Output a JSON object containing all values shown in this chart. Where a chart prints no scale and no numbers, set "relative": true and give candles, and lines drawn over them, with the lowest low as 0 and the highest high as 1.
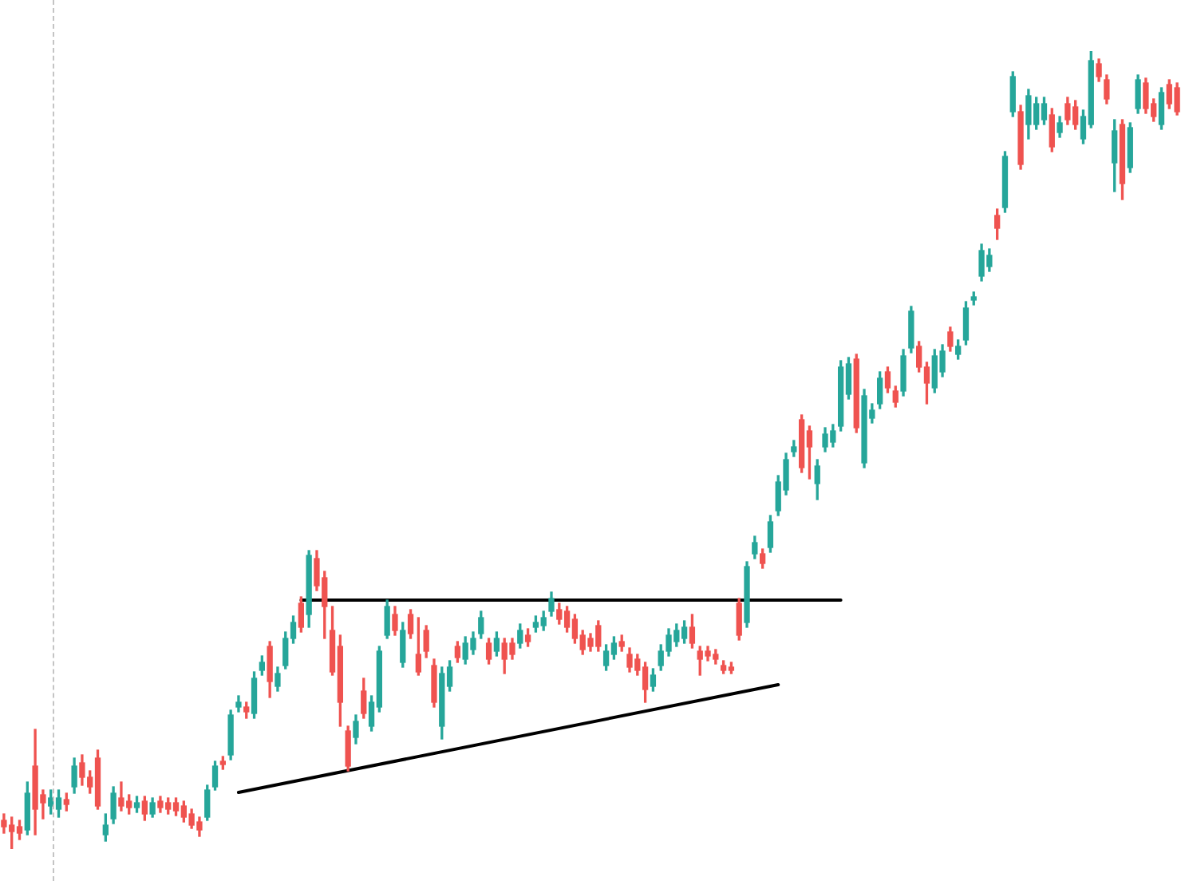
{
  "chart_data": {
    "type": "candlestick",
    "relative": true,
    "categories": [
      null,
      null,
      null,
      null,
      null,
      null,
      null,
      null,
      null,
      null,
      null,
      null,
      null,
      null,
      null,
      null,
      null,
      null,
      null,
      null,
      null,
      null,
      null,
      null,
      null,
      null,
      null,
      null,
      null,
      null,
      null,
      null,
      null,
      null,
      null,
      null,
      null,
      null,
      null,
      null,
      null,
      null,
      null,
      null,
      null,
      null,
      null,
      null,
      null,
      null,
      null,
      null,
      null,
      null,
      null,
      null,
      null,
      null,
      null,
      null,
      null,
      null,
      null,
      null,
      null,
      null,
      null,
      null,
      null,
      null,
      null,
      null,
      null,
      null,
      null,
      null,
      null,
      null,
      null,
      null,
      null,
      null,
      null,
      null,
      null,
      null,
      null,
      null,
      null,
      null,
      null,
      null,
      null,
      null,
      null,
      null,
      null,
      null,
      null,
      null,
      null,
      null,
      null,
      null,
      null,
      null,
      null,
      null,
      null,
      null,
      null,
      null,
      null,
      null,
      null,
      null,
      null,
      null,
      null,
      null,
      null,
      null,
      null,
      null,
      null,
      null,
      null,
      null,
      null,
      null,
      null,
      null,
      null,
      null,
      null,
      null,
      null,
      null,
      null,
      null,
      null,
      null,
      null,
      null,
      null,
      null,
      null,
      null,
      null,
      null,
      null
    ],
    "ohlc": [
      [
        0.036,
        0.044,
        0.02,
        0.028
      ],
      [
        0.03,
        0.04,
        0.0,
        0.022
      ],
      [
        0.028,
        0.036,
        0.012,
        0.02
      ],
      [
        0.024,
        0.084,
        0.018,
        0.07
      ],
      [
        0.104,
        0.15,
        0.018,
        0.05
      ],
      [
        0.068,
        0.074,
        0.038,
        0.058
      ],
      [
        0.054,
        0.074,
        0.044,
        0.064
      ],
      [
        0.05,
        0.074,
        0.04,
        0.064
      ],
      [
        0.062,
        0.07,
        0.048,
        0.056
      ],
      [
        0.078,
        0.114,
        0.07,
        0.104
      ],
      [
        0.108,
        0.118,
        0.08,
        0.09
      ],
      [
        0.09,
        0.098,
        0.07,
        0.078
      ],
      [
        0.114,
        0.124,
        0.05,
        0.054
      ],
      [
        0.018,
        0.044,
        0.01,
        0.03
      ],
      [
        0.038,
        0.078,
        0.032,
        0.07
      ],
      [
        0.064,
        0.084,
        0.048,
        0.054
      ],
      [
        0.06,
        0.068,
        0.044,
        0.052
      ],
      [
        0.052,
        0.066,
        0.046,
        0.058
      ],
      [
        0.06,
        0.066,
        0.036,
        0.044
      ],
      [
        0.044,
        0.064,
        0.04,
        0.058
      ],
      [
        0.06,
        0.066,
        0.046,
        0.052
      ],
      [
        0.058,
        0.064,
        0.044,
        0.05
      ],
      [
        0.058,
        0.064,
        0.042,
        0.048
      ],
      [
        0.054,
        0.06,
        0.034,
        0.04
      ],
      [
        0.044,
        0.05,
        0.026,
        0.03
      ],
      [
        0.034,
        0.04,
        0.016,
        0.024
      ],
      [
        0.04,
        0.08,
        0.036,
        0.074
      ],
      [
        0.078,
        0.11,
        0.074,
        0.104
      ],
      [
        0.11,
        0.116,
        0.1,
        0.106
      ],
      [
        0.118,
        0.174,
        0.112,
        0.168
      ],
      [
        0.178,
        0.192,
        0.172,
        0.184
      ],
      [
        0.178,
        0.184,
        0.164,
        0.172
      ],
      [
        0.17,
        0.222,
        0.164,
        0.214
      ],
      [
        0.224,
        0.242,
        0.218,
        0.234
      ],
      [
        0.254,
        0.26,
        0.19,
        0.21
      ],
      [
        0.204,
        0.228,
        0.198,
        0.22
      ],
      [
        0.23,
        0.272,
        0.226,
        0.264
      ],
      [
        0.264,
        0.292,
        0.258,
        0.284
      ],
      [
        0.308,
        0.316,
        0.272,
        0.278
      ],
      [
        0.294,
        0.374,
        0.278,
        0.368
      ],
      [
        0.364,
        0.374,
        0.324,
        0.33
      ],
      [
        0.34,
        0.348,
        0.264,
        0.304
      ],
      [
        0.274,
        0.304,
        0.218,
        0.222
      ],
      [
        0.254,
        0.268,
        0.154,
        0.184
      ],
      [
        0.148,
        0.154,
        0.098,
        0.104
      ],
      [
        0.14,
        0.168,
        0.132,
        0.16
      ],
      [
        0.198,
        0.214,
        0.164,
        0.17
      ],
      [
        0.154,
        0.192,
        0.148,
        0.184
      ],
      [
        0.178,
        0.254,
        0.172,
        0.248
      ],
      [
        0.268,
        0.312,
        0.264,
        0.304
      ],
      [
        0.294,
        0.304,
        0.268,
        0.274
      ],
      [
        0.234,
        0.284,
        0.228,
        0.274
      ],
      [
        0.294,
        0.3,
        0.264,
        0.27
      ],
      [
        0.244,
        0.29,
        0.218,
        0.222
      ],
      [
        0.274,
        0.28,
        0.24,
        0.248
      ],
      [
        0.23,
        0.238,
        0.178,
        0.184
      ],
      [
        0.154,
        0.228,
        0.138,
        0.22
      ],
      [
        0.204,
        0.236,
        0.198,
        0.228
      ],
      [
        0.254,
        0.26,
        0.234,
        0.24
      ],
      [
        0.238,
        0.266,
        0.232,
        0.258
      ],
      [
        0.25,
        0.272,
        0.244,
        0.264
      ],
      [
        0.27,
        0.298,
        0.264,
        0.29
      ],
      [
        0.258,
        0.264,
        0.232,
        0.238
      ],
      [
        0.248,
        0.272,
        0.242,
        0.264
      ],
      [
        0.258,
        0.264,
        0.22,
        0.238
      ],
      [
        0.258,
        0.264,
        0.238,
        0.244
      ],
      [
        0.258,
        0.282,
        0.252,
        0.274
      ],
      [
        0.268,
        0.276,
        0.254,
        0.26
      ],
      [
        0.278,
        0.292,
        0.272,
        0.284
      ],
      [
        0.28,
        0.298,
        0.274,
        0.29
      ],
      [
        0.298,
        0.322,
        0.292,
        0.314
      ],
      [
        0.3,
        0.308,
        0.282,
        0.288
      ],
      [
        0.298,
        0.304,
        0.272,
        0.278
      ],
      [
        0.288,
        0.294,
        0.258,
        0.264
      ],
      [
        0.268,
        0.274,
        0.244,
        0.25
      ],
      [
        0.264,
        0.27,
        0.248,
        0.254
      ],
      [
        0.28,
        0.286,
        0.248,
        0.254
      ],
      [
        0.23,
        0.256,
        0.224,
        0.248
      ],
      [
        0.244,
        0.266,
        0.238,
        0.258
      ],
      [
        0.26,
        0.268,
        0.248,
        0.254
      ],
      [
        0.244,
        0.252,
        0.222,
        0.228
      ],
      [
        0.238,
        0.244,
        0.218,
        0.224
      ],
      [
        0.228,
        0.234,
        0.184,
        0.2
      ],
      [
        0.204,
        0.226,
        0.198,
        0.218
      ],
      [
        0.23,
        0.256,
        0.224,
        0.248
      ],
      [
        0.248,
        0.276,
        0.242,
        0.268
      ],
      [
        0.26,
        0.282,
        0.254,
        0.274
      ],
      [
        0.264,
        0.286,
        0.258,
        0.278
      ],
      [
        0.278,
        0.294,
        0.252,
        0.258
      ],
      [
        0.248,
        0.254,
        0.218,
        0.238
      ],
      [
        0.248,
        0.254,
        0.236,
        0.242
      ],
      [
        0.244,
        0.25,
        0.232,
        0.238
      ],
      [
        0.23,
        0.236,
        0.22,
        0.224
      ],
      [
        0.228,
        0.234,
        0.22,
        0.224
      ],
      [
        0.308,
        0.314,
        0.262,
        0.268
      ],
      [
        0.284,
        0.36,
        0.278,
        0.354
      ],
      [
        0.37,
        0.392,
        0.364,
        0.384
      ],
      [
        0.37,
        0.376,
        0.352,
        0.358
      ],
      [
        0.378,
        0.418,
        0.372,
        0.41
      ],
      [
        0.424,
        0.468,
        0.418,
        0.46
      ],
      [
        0.45,
        0.496,
        0.444,
        0.488
      ],
      [
        0.498,
        0.512,
        0.492,
        0.504
      ],
      [
        0.538,
        0.544,
        0.472,
        0.478
      ],
      [
        0.524,
        0.53,
        0.464,
        0.504
      ],
      [
        0.458,
        0.488,
        0.438,
        0.48
      ],
      [
        0.504,
        0.528,
        0.498,
        0.52
      ],
      [
        0.51,
        0.532,
        0.504,
        0.524
      ],
      [
        0.53,
        0.612,
        0.524,
        0.604
      ],
      [
        0.57,
        0.616,
        0.564,
        0.608
      ],
      [
        0.614,
        0.62,
        0.522,
        0.528
      ],
      [
        0.484,
        0.576,
        0.478,
        0.568
      ],
      [
        0.54,
        0.558,
        0.534,
        0.55
      ],
      [
        0.558,
        0.598,
        0.552,
        0.59
      ],
      [
        0.598,
        0.604,
        0.572,
        0.578
      ],
      [
        0.574,
        0.58,
        0.554,
        0.56
      ],
      [
        0.574,
        0.626,
        0.568,
        0.618
      ],
      [
        0.628,
        0.68,
        0.622,
        0.674
      ],
      [
        0.63,
        0.636,
        0.598,
        0.604
      ],
      [
        0.604,
        0.61,
        0.558,
        0.584
      ],
      [
        0.578,
        0.626,
        0.572,
        0.618
      ],
      [
        0.598,
        0.632,
        0.592,
        0.624
      ],
      [
        0.648,
        0.654,
        0.624,
        0.63
      ],
      [
        0.62,
        0.638,
        0.614,
        0.63
      ],
      [
        0.638,
        0.686,
        0.632,
        0.678
      ],
      [
        0.688,
        0.698,
        0.682,
        0.692
      ],
      [
        0.718,
        0.758,
        0.712,
        0.75
      ],
      [
        0.73,
        0.752,
        0.724,
        0.744
      ],
      [
        0.794,
        0.802,
        0.764,
        0.778
      ],
      [
        0.804,
        0.874,
        0.798,
        0.868
      ],
      [
        0.924,
        0.974,
        0.918,
        0.968
      ],
      [
        0.924,
        0.932,
        0.852,
        0.858
      ],
      [
        0.908,
        0.952,
        0.89,
        0.944
      ],
      [
        0.908,
        0.942,
        0.902,
        0.934
      ],
      [
        0.914,
        0.942,
        0.908,
        0.934
      ],
      [
        0.92,
        0.928,
        0.874,
        0.88
      ],
      [
        0.898,
        0.918,
        0.892,
        0.91
      ],
      [
        0.934,
        0.942,
        0.908,
        0.914
      ],
      [
        0.93,
        0.938,
        0.902,
        0.908
      ],
      [
        0.89,
        0.926,
        0.884,
        0.918
      ],
      [
        0.908,
        1.0,
        0.904,
        0.988
      ],
      [
        0.984,
        0.99,
        0.962,
        0.968
      ],
      [
        0.964,
        0.97,
        0.934,
        0.94
      ],
      [
        0.86,
        0.914,
        0.824,
        0.9
      ],
      [
        0.908,
        0.914,
        0.814,
        0.834
      ],
      [
        0.854,
        0.91,
        0.848,
        0.904
      ],
      [
        0.928,
        0.97,
        0.922,
        0.964
      ],
      [
        0.96,
        0.966,
        0.922,
        0.928
      ],
      [
        0.934,
        0.94,
        0.912,
        0.918
      ],
      [
        0.908,
        0.954,
        0.902,
        0.948
      ],
      [
        0.958,
        0.964,
        0.928,
        0.934
      ],
      [
        0.954,
        0.96,
        0.92,
        0.924
      ]
    ],
    "colors": [
      "#ef5350",
      "#ef5350",
      "#ef5350",
      "#26a69a",
      "#ef5350",
      "#ef5350",
      "#26a69a",
      "#26a69a",
      "#ef5350",
      "#26a69a",
      "#ef5350",
      "#ef5350",
      "#ef5350",
      "#26a69a",
      "#26a69a",
      "#ef5350",
      "#ef5350",
      "#26a69a",
      "#ef5350",
      "#26a69a",
      "#ef5350",
      "#ef5350",
      "#ef5350",
      "#ef5350",
      "#ef5350",
      "#ef5350",
      "#26a69a",
      "#26a69a",
      "#ef5350",
      "#26a69a",
      "#26a69a",
      "#ef5350",
      "#26a69a",
      "#26a69a",
      "#ef5350",
      "#26a69a",
      "#26a69a",
      "#26a69a",
      "#ef5350",
      "#26a69a",
      "#ef5350",
      "#ef5350",
      "#ef5350",
      "#ef5350",
      "#ef5350",
      "#26a69a",
      "#ef5350",
      "#26a69a",
      "#26a69a",
      "#26a69a",
      "#ef5350",
      "#26a69a",
      "#ef5350",
      "#ef5350",
      "#ef5350",
      "#ef5350",
      "#26a69a",
      "#26a69a",
      "#ef5350",
      "#26a69a",
      "#26a69a",
      "#26a69a",
      "#ef5350",
      "#26a69a",
      "#ef5350",
      "#ef5350",
      "#26a69a",
      "#ef5350",
      "#26a69a",
      "#26a69a",
      "#26a69a",
      "#ef5350",
      "#ef5350",
      "#ef5350",
      "#ef5350",
      "#ef5350",
      "#ef5350",
      "#26a69a",
      "#26a69a",
      "#ef5350",
      "#ef5350",
      "#ef5350",
      "#ef5350",
      "#26a69a",
      "#26a69a",
      "#26a69a",
      "#26a69a",
      "#26a69a",
      "#ef5350",
      "#ef5350",
      "#ef5350",
      "#ef5350",
      "#ef5350",
      "#ef5350",
      "#ef5350",
      "#26a69a",
      "#26a69a",
      "#ef5350",
      "#26a69a",
      "#26a69a",
      "#26a69a",
      "#26a69a",
      "#ef5350",
      "#ef5350",
      "#26a69a",
      "#26a69a",
      "#26a69a",
      "#26a69a",
      "#26a69a",
      "#ef5350",
      "#26a69a",
      "#26a69a",
      "#26a69a",
      "#ef5350",
      "#ef5350",
      "#26a69a",
      "#26a69a",
      "#ef5350",
      "#ef5350",
      "#26a69a",
      "#26a69a",
      "#ef5350",
      "#26a69a",
      "#26a69a",
      "#26a69a",
      "#26a69a",
      "#26a69a",
      "#ef5350",
      "#26a69a",
      "#26a69a",
      "#ef5350",
      "#26a69a",
      "#26a69a",
      "#26a69a",
      "#ef5350",
      "#26a69a",
      "#ef5350",
      "#ef5350",
      "#26a69a",
      "#26a69a",
      "#ef5350",
      "#ef5350",
      "#26a69a",
      "#ef5350",
      "#26a69a",
      "#26a69a",
      "#ef5350",
      "#ef5350",
      "#26a69a",
      "#ef5350",
      "#ef5350"
    ],
    "series": [
      {
        "type": "line",
        "color": "#000000",
        "values": [
          null,
          null,
          null,
          null,
          null,
          null,
          null,
          null,
          null,
          null,
          null,
          null,
          null,
          null,
          null,
          null,
          null,
          null,
          null,
          null,
          null,
          null,
          null,
          null,
          null,
          null,
          null,
          null,
          null,
          null,
          0.071,
          null,
          null,
          null,
          null,
          null,
          null,
          null,
          null,
          null,
          null,
          null,
          null,
          null,
          null,
          null,
          null,
          null,
          null,
          null,
          null,
          null,
          null,
          null,
          null,
          null,
          null,
          null,
          null,
          null,
          null,
          null,
          null,
          null,
          null,
          null,
          null,
          null,
          null,
          null,
          null,
          null,
          null,
          null,
          null,
          null,
          null,
          null,
          null,
          null,
          null,
          null,
          null,
          null,
          null,
          null,
          null,
          null,
          null,
          null,
          null,
          null,
          null,
          null,
          null,
          null,
          null,
          null,
          null,
          0.206,
          null,
          null,
          null,
          null,
          null,
          null,
          null,
          null,
          null,
          null,
          null,
          null,
          null,
          null,
          null,
          null,
          null,
          null,
          null,
          null,
          null,
          null,
          null,
          null,
          null,
          null,
          null,
          null,
          null,
          null,
          null,
          null,
          null,
          null,
          null,
          null,
          null,
          null,
          null,
          null,
          null,
          null,
          null,
          null,
          null,
          null,
          null,
          null,
          null,
          null,
          null
        ]
      },
      {
        "type": "line",
        "color": "#000000",
        "values": [
          null,
          null,
          null,
          null,
          null,
          null,
          null,
          null,
          null,
          null,
          null,
          null,
          null,
          null,
          null,
          null,
          null,
          null,
          null,
          null,
          null,
          null,
          null,
          null,
          null,
          null,
          null,
          null,
          null,
          null,
          null,
          null,
          null,
          null,
          null,
          null,
          null,
          null,
          0.312,
          null,
          null,
          null,
          null,
          null,
          null,
          null,
          null,
          null,
          null,
          null,
          null,
          null,
          null,
          null,
          null,
          null,
          null,
          null,
          null,
          null,
          null,
          null,
          null,
          null,
          null,
          null,
          null,
          null,
          null,
          null,
          null,
          null,
          null,
          null,
          null,
          null,
          null,
          null,
          null,
          null,
          null,
          null,
          null,
          null,
          null,
          null,
          null,
          null,
          null,
          null,
          null,
          null,
          null,
          null,
          null,
          null,
          null,
          null,
          null,
          null,
          null,
          null,
          null,
          null,
          null,
          null,
          null,
          0.312,
          null,
          null,
          null,
          null,
          null,
          null,
          null,
          null,
          null,
          null,
          null,
          null,
          null,
          null,
          null,
          null,
          null,
          null,
          null,
          null,
          null,
          null,
          null,
          null,
          null,
          null,
          null,
          null,
          null,
          null,
          null,
          null,
          null,
          null,
          null,
          null,
          null,
          null,
          null,
          null,
          null,
          null,
          null
        ]
      }
    ]
  }
}
